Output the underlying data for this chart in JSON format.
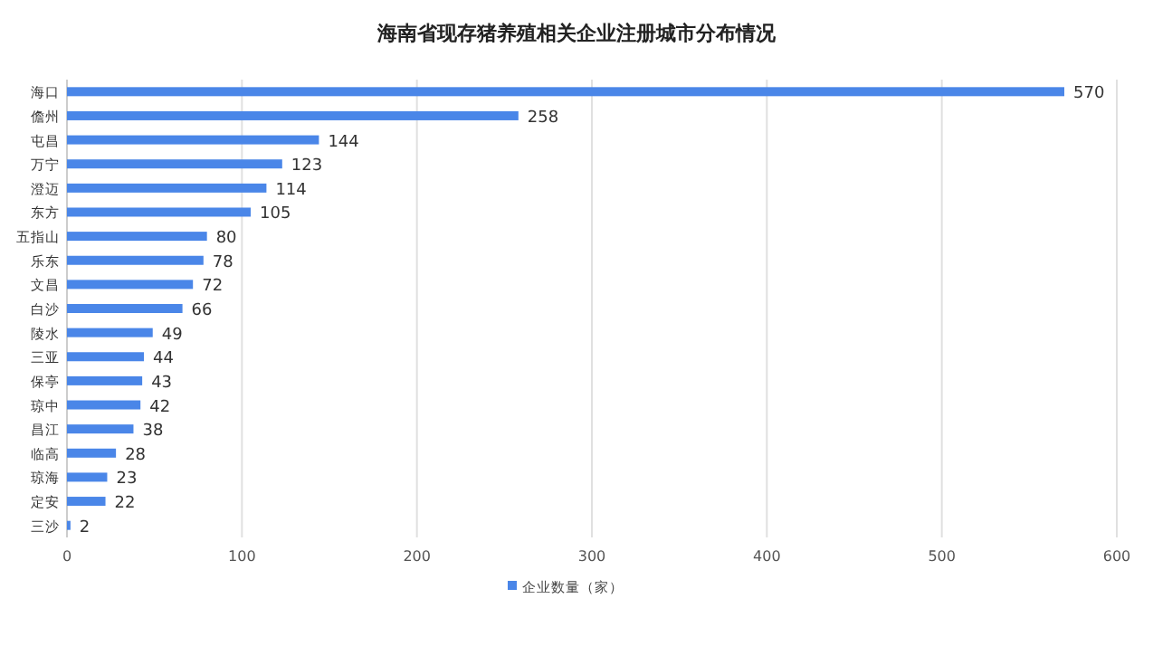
{
  "chart_data": {
    "type": "bar",
    "orientation": "horizontal",
    "title": "海南省现存猪养殖相关企业注册城市分布情况",
    "categories": [
      "海口",
      "儋州",
      "屯昌",
      "万宁",
      "澄迈",
      "东方",
      "五指山",
      "乐东",
      "文昌",
      "白沙",
      "陵水",
      "三亚",
      "保亭",
      "琼中",
      "昌江",
      "临高",
      "琼海",
      "定安",
      "三沙"
    ],
    "series": [
      {
        "name": "企业数量（家）",
        "color": "#4a86e8",
        "values": [
          570,
          258,
          144,
          123,
          114,
          105,
          80,
          78,
          72,
          66,
          49,
          44,
          43,
          42,
          38,
          28,
          23,
          22,
          2
        ]
      }
    ],
    "xlim": [
      0,
      600
    ],
    "xticks": [
      0,
      100,
      200,
      300,
      400,
      500,
      600
    ],
    "grid": "x",
    "legend": "bottom",
    "data_labels": true
  }
}
